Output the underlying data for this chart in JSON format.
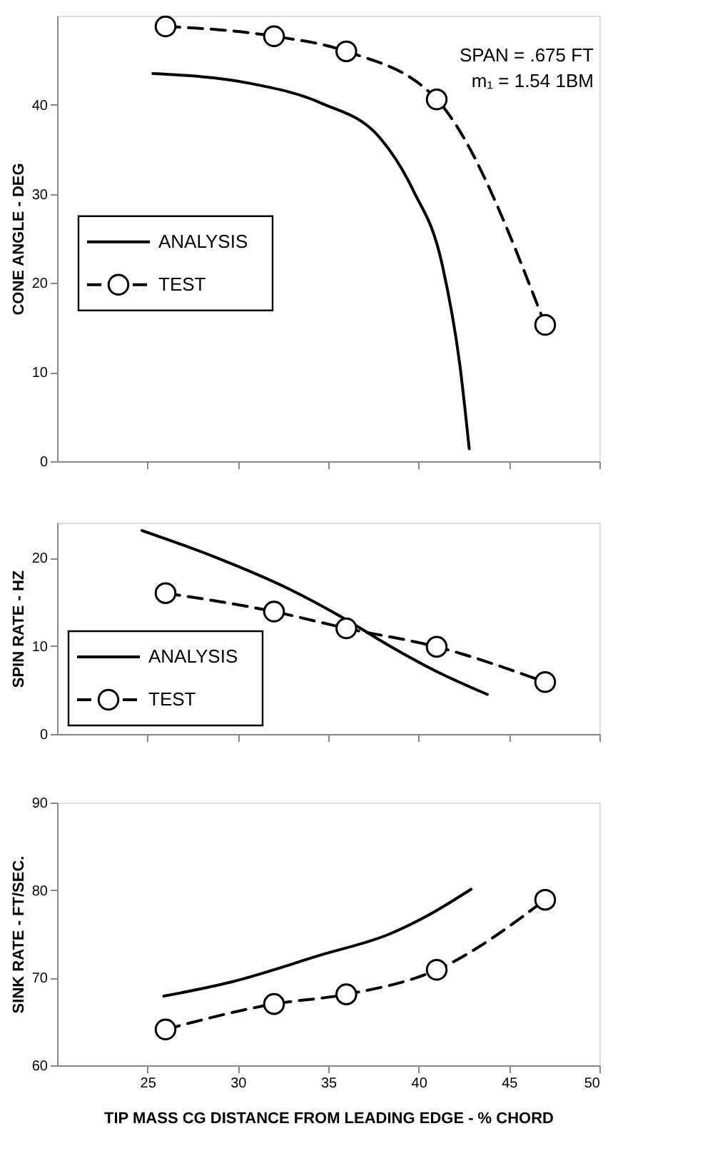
{
  "chart_data": [
    {
      "type": "line",
      "ylabel": "CONE ANGLE - DEG",
      "xlim": [
        20,
        50
      ],
      "xticks": [
        25,
        30,
        35,
        40,
        45,
        50
      ],
      "ylim": [
        0,
        50
      ],
      "yticks": [
        0,
        10,
        20,
        30,
        40
      ],
      "tick_labels": "y",
      "legend": "left",
      "annotations": [
        "SPAN = .675 FT",
        "m₁ = 1.54 1BM"
      ],
      "series": [
        {
          "name": "ANALYSIS",
          "color": "#000000",
          "line_style": "solid",
          "marker": "none",
          "x": [
            25.3,
            30.7,
            34.6,
            37.9,
            39.7,
            41.3,
            42.3,
            42.8
          ],
          "values": [
            43.5,
            42.4,
            40.2,
            36.2,
            30.4,
            22.1,
            10.5,
            1.4
          ]
        },
        {
          "name": "TEST",
          "color": "#000000",
          "line_style": "dashed",
          "marker": "circle",
          "x": [
            26,
            32,
            36,
            41,
            47
          ],
          "values": [
            48.8,
            47.7,
            46.0,
            40.6,
            15.3
          ]
        }
      ]
    },
    {
      "type": "line",
      "ylabel": "SPIN RATE - HZ",
      "xlim": [
        20,
        50
      ],
      "xticks": [
        25,
        30,
        35,
        40,
        45,
        50
      ],
      "ylim": [
        0,
        24
      ],
      "yticks": [
        0,
        10,
        20
      ],
      "tick_labels": "y",
      "legend": "bottom left",
      "series": [
        {
          "name": "ANALYSIS",
          "color": "#000000",
          "line_style": "solid",
          "marker": "none",
          "x": [
            24.7,
            28.6,
            32.8,
            35.9,
            38.4,
            41.0,
            43.8
          ],
          "values": [
            23.1,
            20.2,
            16.5,
            13.1,
            10.0,
            7.1,
            4.5
          ]
        },
        {
          "name": "TEST",
          "color": "#000000",
          "line_style": "dashed",
          "marker": "circle",
          "x": [
            26,
            32,
            36,
            41,
            47
          ],
          "values": [
            16.0,
            13.9,
            12.0,
            9.9,
            5.9
          ]
        }
      ]
    },
    {
      "type": "line",
      "ylabel": "SINK RATE - FT/SEC.",
      "xlabel": "TIP MASS CG DISTANCE FROM LEADING EDGE - % CHORD",
      "xlim": [
        20,
        50
      ],
      "xticks": [
        25,
        30,
        35,
        40,
        45,
        50
      ],
      "ylim": [
        60,
        90
      ],
      "yticks": [
        60,
        70,
        80,
        90
      ],
      "series": [
        {
          "color": "#000000",
          "line_style": "solid",
          "marker": "none",
          "x": [
            25.9,
            29.6,
            34.6,
            38.4,
            40.5,
            42.9
          ],
          "values": [
            67.9,
            69.5,
            72.6,
            75.0,
            77.1,
            80.1
          ]
        },
        {
          "color": "#000000",
          "line_style": "dashed",
          "marker": "circle",
          "x": [
            26,
            32,
            36,
            41,
            47
          ],
          "values": [
            64.1,
            67.0,
            68.1,
            70.9,
            78.9
          ]
        }
      ]
    }
  ]
}
